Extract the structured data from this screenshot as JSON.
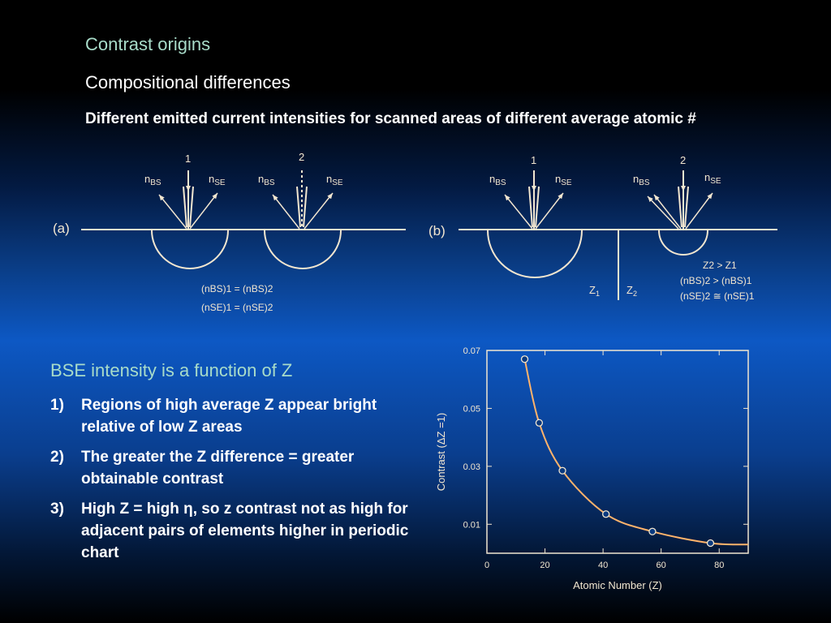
{
  "slide": {
    "title": "Contrast origins",
    "subtitle": "Compositional differences",
    "lead": "Different emitted current intensities for scanned areas of different average atomic #"
  },
  "diagram_a": {
    "panel_label": "(a)",
    "beam1": "1",
    "beam2": "2",
    "n": "n",
    "bs": "BS",
    "se": "SE",
    "eq1": "(nBS)1 = (nBS)2",
    "eq2": "(nSE)1 = (nSE)2"
  },
  "diagram_b": {
    "panel_label": "(b)",
    "beam1": "1",
    "beam2": "2",
    "z1": "Z",
    "z2": "Z",
    "rel1": "Z2 > Z1",
    "rel2": "(nBS)2 > (nBS)1",
    "rel3": "(nSE)2 ≅ (nSE)1"
  },
  "body": {
    "heading": "BSE intensity is a function of Z",
    "items": [
      {
        "num": "1)",
        "text": "Regions of high average Z appear bright relative of low Z areas"
      },
      {
        "num": "2)",
        "text": "The greater the Z difference = greater obtainable contrast"
      },
      {
        "num": "3)",
        "text": "High Z = high η, so z contrast not as high for adjacent pairs of elements higher in periodic chart"
      }
    ]
  },
  "chart_data": {
    "type": "scatter",
    "xlabel": "Atomic Number (Z)",
    "ylabel": "Contrast (ΔZ =1)",
    "xlim": [
      0,
      90
    ],
    "ylim": [
      0,
      0.07
    ],
    "x_ticks": [
      0,
      20,
      40,
      60,
      80
    ],
    "y_ticks": [
      0.01,
      0.03,
      0.05,
      0.07
    ],
    "y_tick_labels": [
      "0.01",
      "0.03",
      "0.05",
      "0.07"
    ],
    "series": [
      {
        "x": [
          13,
          18,
          26,
          41,
          57,
          77
        ],
        "y": [
          0.067,
          0.045,
          0.0285,
          0.0135,
          0.0075,
          0.0035
        ]
      }
    ],
    "curve_end_x": 90,
    "curve_end_y": 0.003,
    "colors": {
      "curve": "#ffb36b",
      "frame": "#f2e6d0",
      "text": "#f2e6d0"
    }
  }
}
